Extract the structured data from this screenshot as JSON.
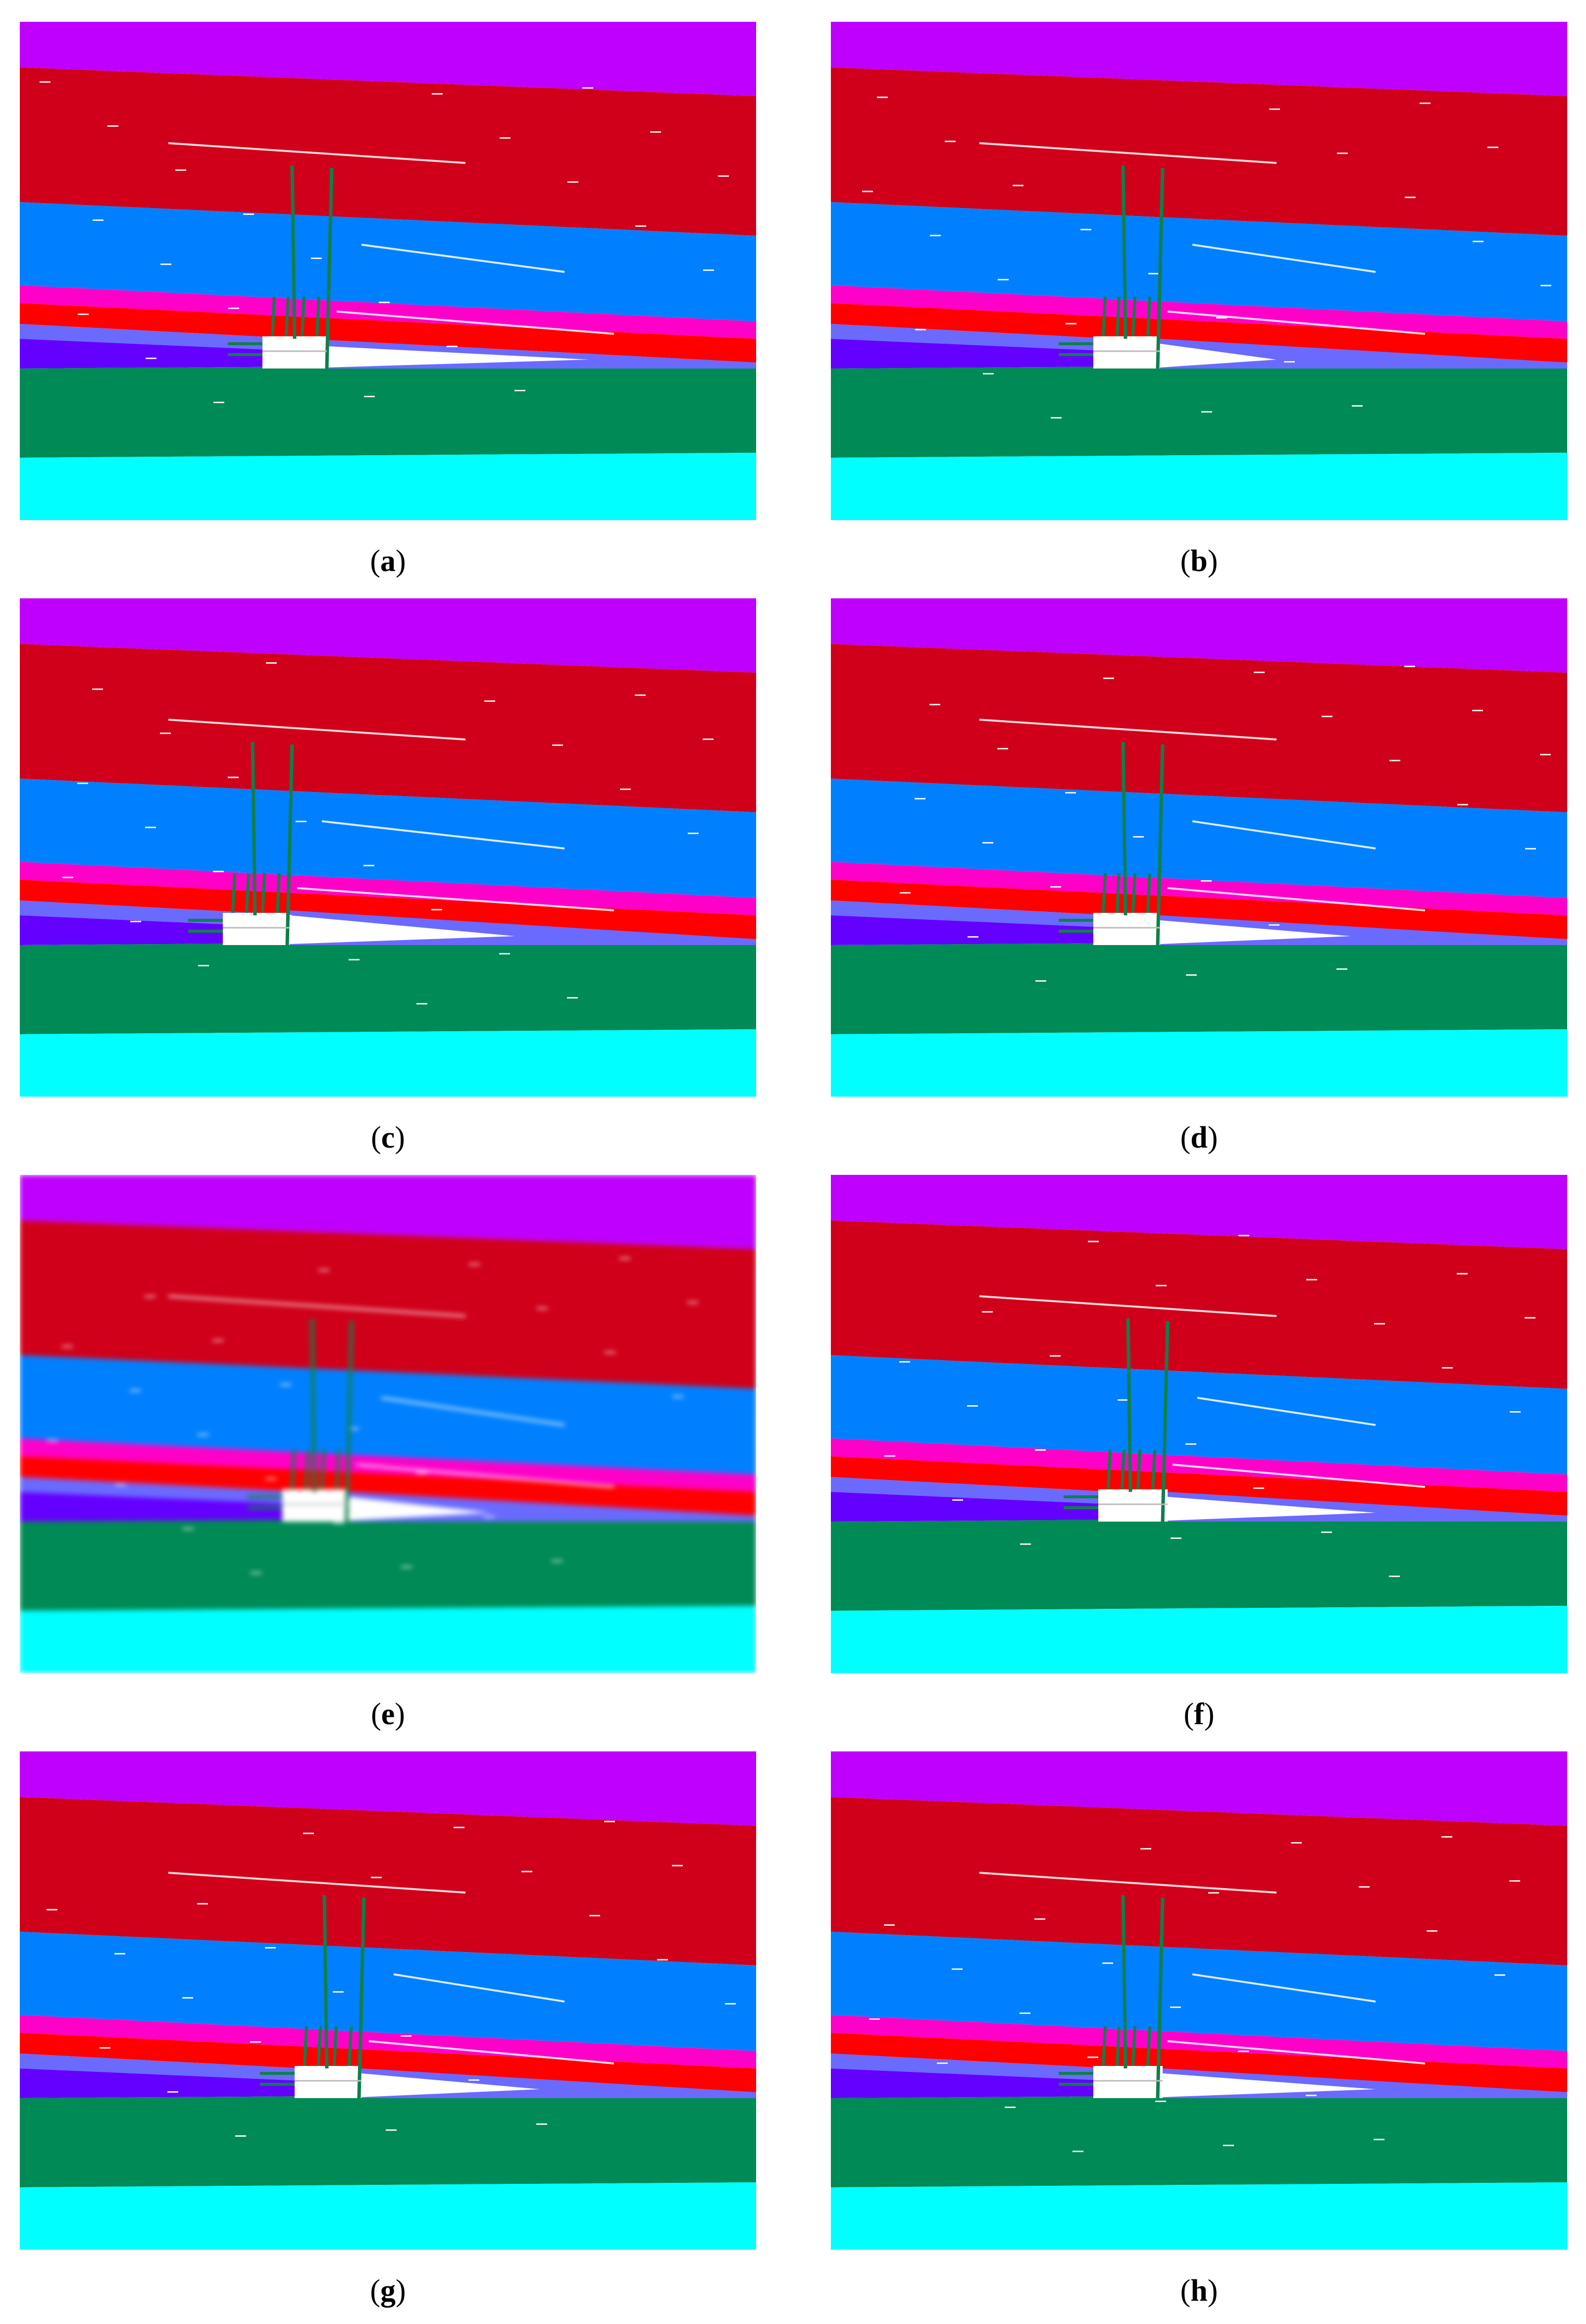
{
  "colors": {
    "layer_top": "#bf00ff",
    "layer_red_dark": "#d0001a",
    "layer_blue": "#0080ff",
    "layer_magenta": "#ff00c8",
    "layer_red": "#ff0000",
    "layer_lavender": "#6a6aff",
    "layer_violet": "#6400ff",
    "layer_green": "#008a55",
    "layer_cyan": "#00ffff",
    "cavity": "#ffffff",
    "anchor": "#0f7f4a"
  },
  "panels": [
    {
      "id": "a",
      "label": "a"
    },
    {
      "id": "b",
      "label": "b"
    },
    {
      "id": "c",
      "label": "c"
    },
    {
      "id": "d",
      "label": "d"
    },
    {
      "id": "e",
      "label": "e"
    },
    {
      "id": "f",
      "label": "f"
    },
    {
      "id": "g",
      "label": "g"
    },
    {
      "id": "h",
      "label": "h"
    }
  ]
}
